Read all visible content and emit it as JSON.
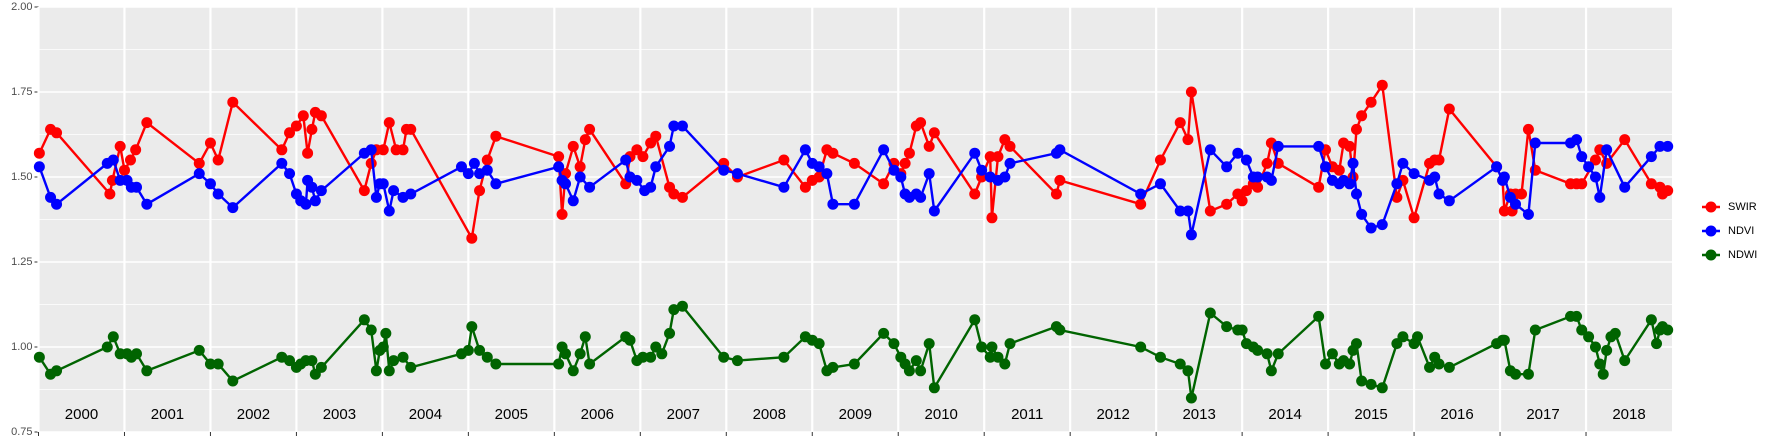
{
  "chart_data": {
    "type": "line",
    "markers": true,
    "legend": "right",
    "grid": true,
    "background": "#ebebeb",
    "xlim": [
      2000,
      2019
    ],
    "ylim": [
      0.75,
      2
    ],
    "xticks": [
      2000,
      2001,
      2002,
      2003,
      2004,
      2005,
      2006,
      2007,
      2008,
      2009,
      2010,
      2011,
      2012,
      2013,
      2014,
      2015,
      2016,
      2017,
      2018
    ],
    "yticks": [
      0.75,
      {
        "value": 1,
        "label": "1.00"
      },
      1.25,
      {
        "value": 1.5,
        "label": "1.50"
      },
      1.75,
      {
        "value": 2,
        "label": "2.00"
      }
    ],
    "yminorticks": [
      0.875,
      1.125,
      1.375,
      1.625,
      1.875
    ],
    "series": [
      {
        "name": "SWIR",
        "color": "#ff0000",
        "x": [
          2000.01,
          2000.14,
          2000.21,
          2000.83,
          2000.86,
          2000.95,
          2001.0,
          2001.07,
          2001.13,
          2001.26,
          2001.87,
          2002.0,
          2002.09,
          2002.26,
          2002.83,
          2002.92,
          2003.0,
          2003.08,
          2003.13,
          2003.18,
          2003.22,
          2003.29,
          2003.79,
          2003.87,
          2003.93,
          2004.01,
          2004.08,
          2004.16,
          2004.24,
          2004.28,
          2004.33,
          2005.04,
          2005.13,
          2005.22,
          2005.32,
          2006.05,
          2006.09,
          2006.13,
          2006.22,
          2006.3,
          2006.36,
          2006.41,
          2006.83,
          2006.88,
          2006.96,
          2007.03,
          2007.12,
          2007.18,
          2007.34,
          2007.39,
          2007.49,
          2007.97,
          2008.13,
          2008.67,
          2008.92,
          2009.0,
          2009.08,
          2009.17,
          2009.24,
          2009.49,
          2009.83,
          2009.95,
          2010.03,
          2010.08,
          2010.13,
          2010.21,
          2010.26,
          2010.36,
          2010.42,
          2010.89,
          2010.97,
          2011.07,
          2011.09,
          2011.16,
          2011.24,
          2011.3,
          2011.84,
          2011.88,
          2012.82,
          2013.05,
          2013.28,
          2013.37,
          2013.41,
          2013.63,
          2013.82,
          2013.95,
          2014.0,
          2014.05,
          2014.13,
          2014.18,
          2014.29,
          2014.34,
          2014.42,
          2014.89,
          2014.97,
          2015.05,
          2015.13,
          2015.18,
          2015.25,
          2015.29,
          2015.33,
          2015.39,
          2015.5,
          2015.63,
          2015.8,
          2015.87,
          2016.0,
          2016.18,
          2016.24,
          2016.29,
          2016.41,
          2016.96,
          2017.03,
          2017.05,
          2017.12,
          2017.14,
          2017.18,
          2017.25,
          2017.33,
          2017.41,
          2017.82,
          2017.89,
          2017.95,
          2018.11,
          2018.16,
          2018.24,
          2018.45,
          2018.76,
          2018.86,
          2018.89,
          2018.95
        ],
        "values": [
          1.57,
          1.64,
          1.63,
          1.45,
          1.49,
          1.59,
          1.52,
          1.55,
          1.58,
          1.66,
          1.54,
          1.6,
          1.55,
          1.72,
          1.58,
          1.63,
          1.65,
          1.68,
          1.57,
          1.64,
          1.69,
          1.68,
          1.46,
          1.54,
          1.58,
          1.58,
          1.66,
          1.58,
          1.58,
          1.64,
          1.64,
          1.32,
          1.46,
          1.55,
          1.62,
          1.56,
          1.39,
          1.51,
          1.59,
          1.53,
          1.61,
          1.64,
          1.48,
          1.56,
          1.58,
          1.56,
          1.6,
          1.62,
          1.47,
          1.45,
          1.44,
          1.54,
          1.5,
          1.55,
          1.47,
          1.49,
          1.5,
          1.58,
          1.57,
          1.54,
          1.48,
          1.54,
          1.51,
          1.54,
          1.57,
          1.65,
          1.66,
          1.59,
          1.63,
          1.45,
          1.5,
          1.56,
          1.38,
          1.56,
          1.61,
          1.59,
          1.45,
          1.49,
          1.42,
          1.55,
          1.66,
          1.61,
          1.75,
          1.4,
          1.42,
          1.45,
          1.43,
          1.46,
          1.48,
          1.47,
          1.54,
          1.6,
          1.54,
          1.47,
          1.58,
          1.53,
          1.52,
          1.6,
          1.59,
          1.5,
          1.64,
          1.68,
          1.72,
          1.77,
          1.44,
          1.49,
          1.38,
          1.54,
          1.55,
          1.55,
          1.7,
          1.53,
          1.49,
          1.4,
          1.45,
          1.4,
          1.45,
          1.45,
          1.64,
          1.52,
          1.48,
          1.48,
          1.48,
          1.55,
          1.58,
          1.54,
          1.61,
          1.48,
          1.47,
          1.45,
          1.46
        ]
      },
      {
        "name": "NDVI",
        "color": "#0000ff",
        "x": [
          2000.01,
          2000.14,
          2000.21,
          2000.8,
          2000.87,
          2000.95,
          2001.03,
          2001.08,
          2001.14,
          2001.26,
          2001.87,
          2002.0,
          2002.09,
          2002.26,
          2002.83,
          2002.92,
          2003.0,
          2003.05,
          2003.11,
          2003.13,
          2003.18,
          2003.22,
          2003.29,
          2003.79,
          2003.87,
          2003.93,
          2003.97,
          2004.01,
          2004.08,
          2004.13,
          2004.24,
          2004.33,
          2004.92,
          2005.0,
          2005.07,
          2005.13,
          2005.22,
          2005.32,
          2006.05,
          2006.09,
          2006.13,
          2006.22,
          2006.3,
          2006.41,
          2006.83,
          2006.88,
          2006.96,
          2007.05,
          2007.12,
          2007.18,
          2007.34,
          2007.39,
          2007.49,
          2007.97,
          2008.13,
          2008.67,
          2008.92,
          2009.0,
          2009.08,
          2009.17,
          2009.24,
          2009.49,
          2009.83,
          2009.95,
          2010.03,
          2010.08,
          2010.13,
          2010.21,
          2010.26,
          2010.36,
          2010.42,
          2010.89,
          2010.97,
          2011.07,
          2011.16,
          2011.24,
          2011.3,
          2011.84,
          2011.88,
          2012.82,
          2013.05,
          2013.28,
          2013.37,
          2013.41,
          2013.63,
          2013.82,
          2013.95,
          2014.05,
          2014.13,
          2014.18,
          2014.29,
          2014.34,
          2014.42,
          2014.89,
          2014.97,
          2015.05,
          2015.13,
          2015.18,
          2015.25,
          2015.29,
          2015.33,
          2015.39,
          2015.5,
          2015.63,
          2015.8,
          2015.87,
          2016.0,
          2016.18,
          2016.24,
          2016.29,
          2016.41,
          2016.96,
          2017.03,
          2017.05,
          2017.12,
          2017.18,
          2017.33,
          2017.41,
          2017.82,
          2017.89,
          2017.95,
          2018.03,
          2018.11,
          2018.16,
          2018.24,
          2018.45,
          2018.76,
          2018.86,
          2018.95
        ],
        "values": [
          1.53,
          1.44,
          1.42,
          1.54,
          1.55,
          1.49,
          1.49,
          1.47,
          1.47,
          1.42,
          1.51,
          1.48,
          1.45,
          1.41,
          1.54,
          1.51,
          1.45,
          1.43,
          1.42,
          1.49,
          1.47,
          1.43,
          1.46,
          1.57,
          1.58,
          1.44,
          1.48,
          1.48,
          1.4,
          1.46,
          1.44,
          1.45,
          1.53,
          1.51,
          1.54,
          1.51,
          1.52,
          1.48,
          1.53,
          1.49,
          1.48,
          1.43,
          1.5,
          1.47,
          1.55,
          1.5,
          1.49,
          1.46,
          1.47,
          1.53,
          1.59,
          1.65,
          1.65,
          1.52,
          1.51,
          1.47,
          1.58,
          1.54,
          1.53,
          1.51,
          1.42,
          1.42,
          1.58,
          1.52,
          1.5,
          1.45,
          1.44,
          1.45,
          1.44,
          1.51,
          1.4,
          1.57,
          1.52,
          1.5,
          1.49,
          1.5,
          1.54,
          1.57,
          1.58,
          1.45,
          1.48,
          1.4,
          1.4,
          1.33,
          1.58,
          1.53,
          1.57,
          1.55,
          1.5,
          1.5,
          1.5,
          1.49,
          1.59,
          1.59,
          1.53,
          1.49,
          1.48,
          1.49,
          1.48,
          1.54,
          1.45,
          1.39,
          1.35,
          1.36,
          1.48,
          1.54,
          1.51,
          1.49,
          1.5,
          1.45,
          1.43,
          1.53,
          1.49,
          1.5,
          1.44,
          1.42,
          1.39,
          1.6,
          1.6,
          1.61,
          1.56,
          1.53,
          1.5,
          1.44,
          1.58,
          1.47,
          1.56,
          1.59,
          1.59
        ]
      },
      {
        "name": "NDWI",
        "color": "#006400",
        "x": [
          2000.01,
          2000.14,
          2000.21,
          2000.8,
          2000.87,
          2000.95,
          2001.03,
          2001.08,
          2001.14,
          2001.26,
          2001.87,
          2002.0,
          2002.09,
          2002.26,
          2002.83,
          2002.92,
          2003.0,
          2003.05,
          2003.11,
          2003.18,
          2003.22,
          2003.29,
          2003.79,
          2003.87,
          2003.93,
          2003.97,
          2004.01,
          2004.04,
          2004.08,
          2004.13,
          2004.24,
          2004.33,
          2004.92,
          2005.0,
          2005.04,
          2005.13,
          2005.22,
          2005.32,
          2006.05,
          2006.09,
          2006.13,
          2006.22,
          2006.3,
          2006.36,
          2006.41,
          2006.83,
          2006.88,
          2006.96,
          2007.03,
          2007.12,
          2007.18,
          2007.25,
          2007.34,
          2007.39,
          2007.49,
          2007.97,
          2008.13,
          2008.67,
          2008.92,
          2009.0,
          2009.08,
          2009.17,
          2009.24,
          2009.49,
          2009.83,
          2009.95,
          2010.03,
          2010.08,
          2010.13,
          2010.21,
          2010.26,
          2010.36,
          2010.42,
          2010.89,
          2010.97,
          2011.07,
          2011.09,
          2011.16,
          2011.24,
          2011.3,
          2011.84,
          2011.88,
          2012.82,
          2013.05,
          2013.28,
          2013.37,
          2013.41,
          2013.63,
          2013.82,
          2013.95,
          2014.0,
          2014.05,
          2014.13,
          2014.18,
          2014.29,
          2014.34,
          2014.42,
          2014.89,
          2014.97,
          2015.05,
          2015.13,
          2015.18,
          2015.25,
          2015.29,
          2015.33,
          2015.39,
          2015.5,
          2015.63,
          2015.8,
          2015.87,
          2016.0,
          2016.04,
          2016.18,
          2016.24,
          2016.29,
          2016.41,
          2016.96,
          2017.03,
          2017.05,
          2017.12,
          2017.18,
          2017.33,
          2017.41,
          2017.82,
          2017.89,
          2017.95,
          2018.03,
          2018.11,
          2018.16,
          2018.2,
          2018.24,
          2018.29,
          2018.34,
          2018.45,
          2018.76,
          2018.82,
          2018.86,
          2018.89,
          2018.95
        ],
        "values": [
          0.97,
          0.92,
          0.93,
          1.0,
          1.03,
          0.98,
          0.98,
          0.97,
          0.98,
          0.93,
          0.99,
          0.95,
          0.95,
          0.9,
          0.97,
          0.96,
          0.94,
          0.95,
          0.96,
          0.96,
          0.92,
          0.94,
          1.08,
          1.05,
          0.93,
          0.99,
          1.0,
          1.04,
          0.93,
          0.96,
          0.97,
          0.94,
          0.98,
          0.99,
          1.06,
          0.99,
          0.97,
          0.95,
          0.95,
          1.0,
          0.98,
          0.93,
          0.98,
          1.03,
          0.95,
          1.03,
          1.02,
          0.96,
          0.97,
          0.97,
          1.0,
          0.98,
          1.04,
          1.11,
          1.12,
          0.97,
          0.96,
          0.97,
          1.03,
          1.02,
          1.01,
          0.93,
          0.94,
          0.95,
          1.04,
          1.01,
          0.97,
          0.95,
          0.93,
          0.96,
          0.93,
          1.01,
          0.88,
          1.08,
          1.0,
          0.97,
          1.0,
          0.97,
          0.95,
          1.01,
          1.06,
          1.05,
          1.0,
          0.97,
          0.95,
          0.93,
          0.85,
          1.1,
          1.06,
          1.05,
          1.05,
          1.01,
          1.0,
          0.99,
          0.98,
          0.93,
          0.98,
          1.09,
          0.95,
          0.98,
          0.95,
          0.96,
          0.95,
          0.99,
          1.01,
          0.9,
          0.89,
          0.88,
          1.01,
          1.03,
          1.01,
          1.03,
          0.94,
          0.97,
          0.95,
          0.94,
          1.01,
          1.02,
          1.02,
          0.93,
          0.92,
          0.92,
          1.05,
          1.09,
          1.09,
          1.05,
          1.03,
          1.0,
          0.95,
          0.92,
          0.99,
          1.03,
          1.04,
          0.96,
          1.08,
          1.01,
          1.05,
          1.06,
          1.05
        ]
      }
    ]
  }
}
